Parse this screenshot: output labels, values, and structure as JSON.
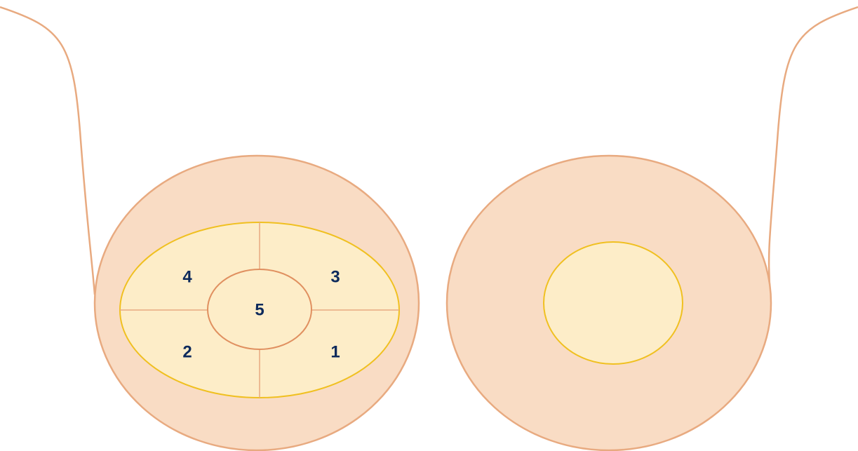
{
  "regions": [
    {
      "label": "1"
    },
    {
      "label": "2"
    },
    {
      "label": "3"
    },
    {
      "label": "4"
    },
    {
      "label": "5"
    }
  ]
}
